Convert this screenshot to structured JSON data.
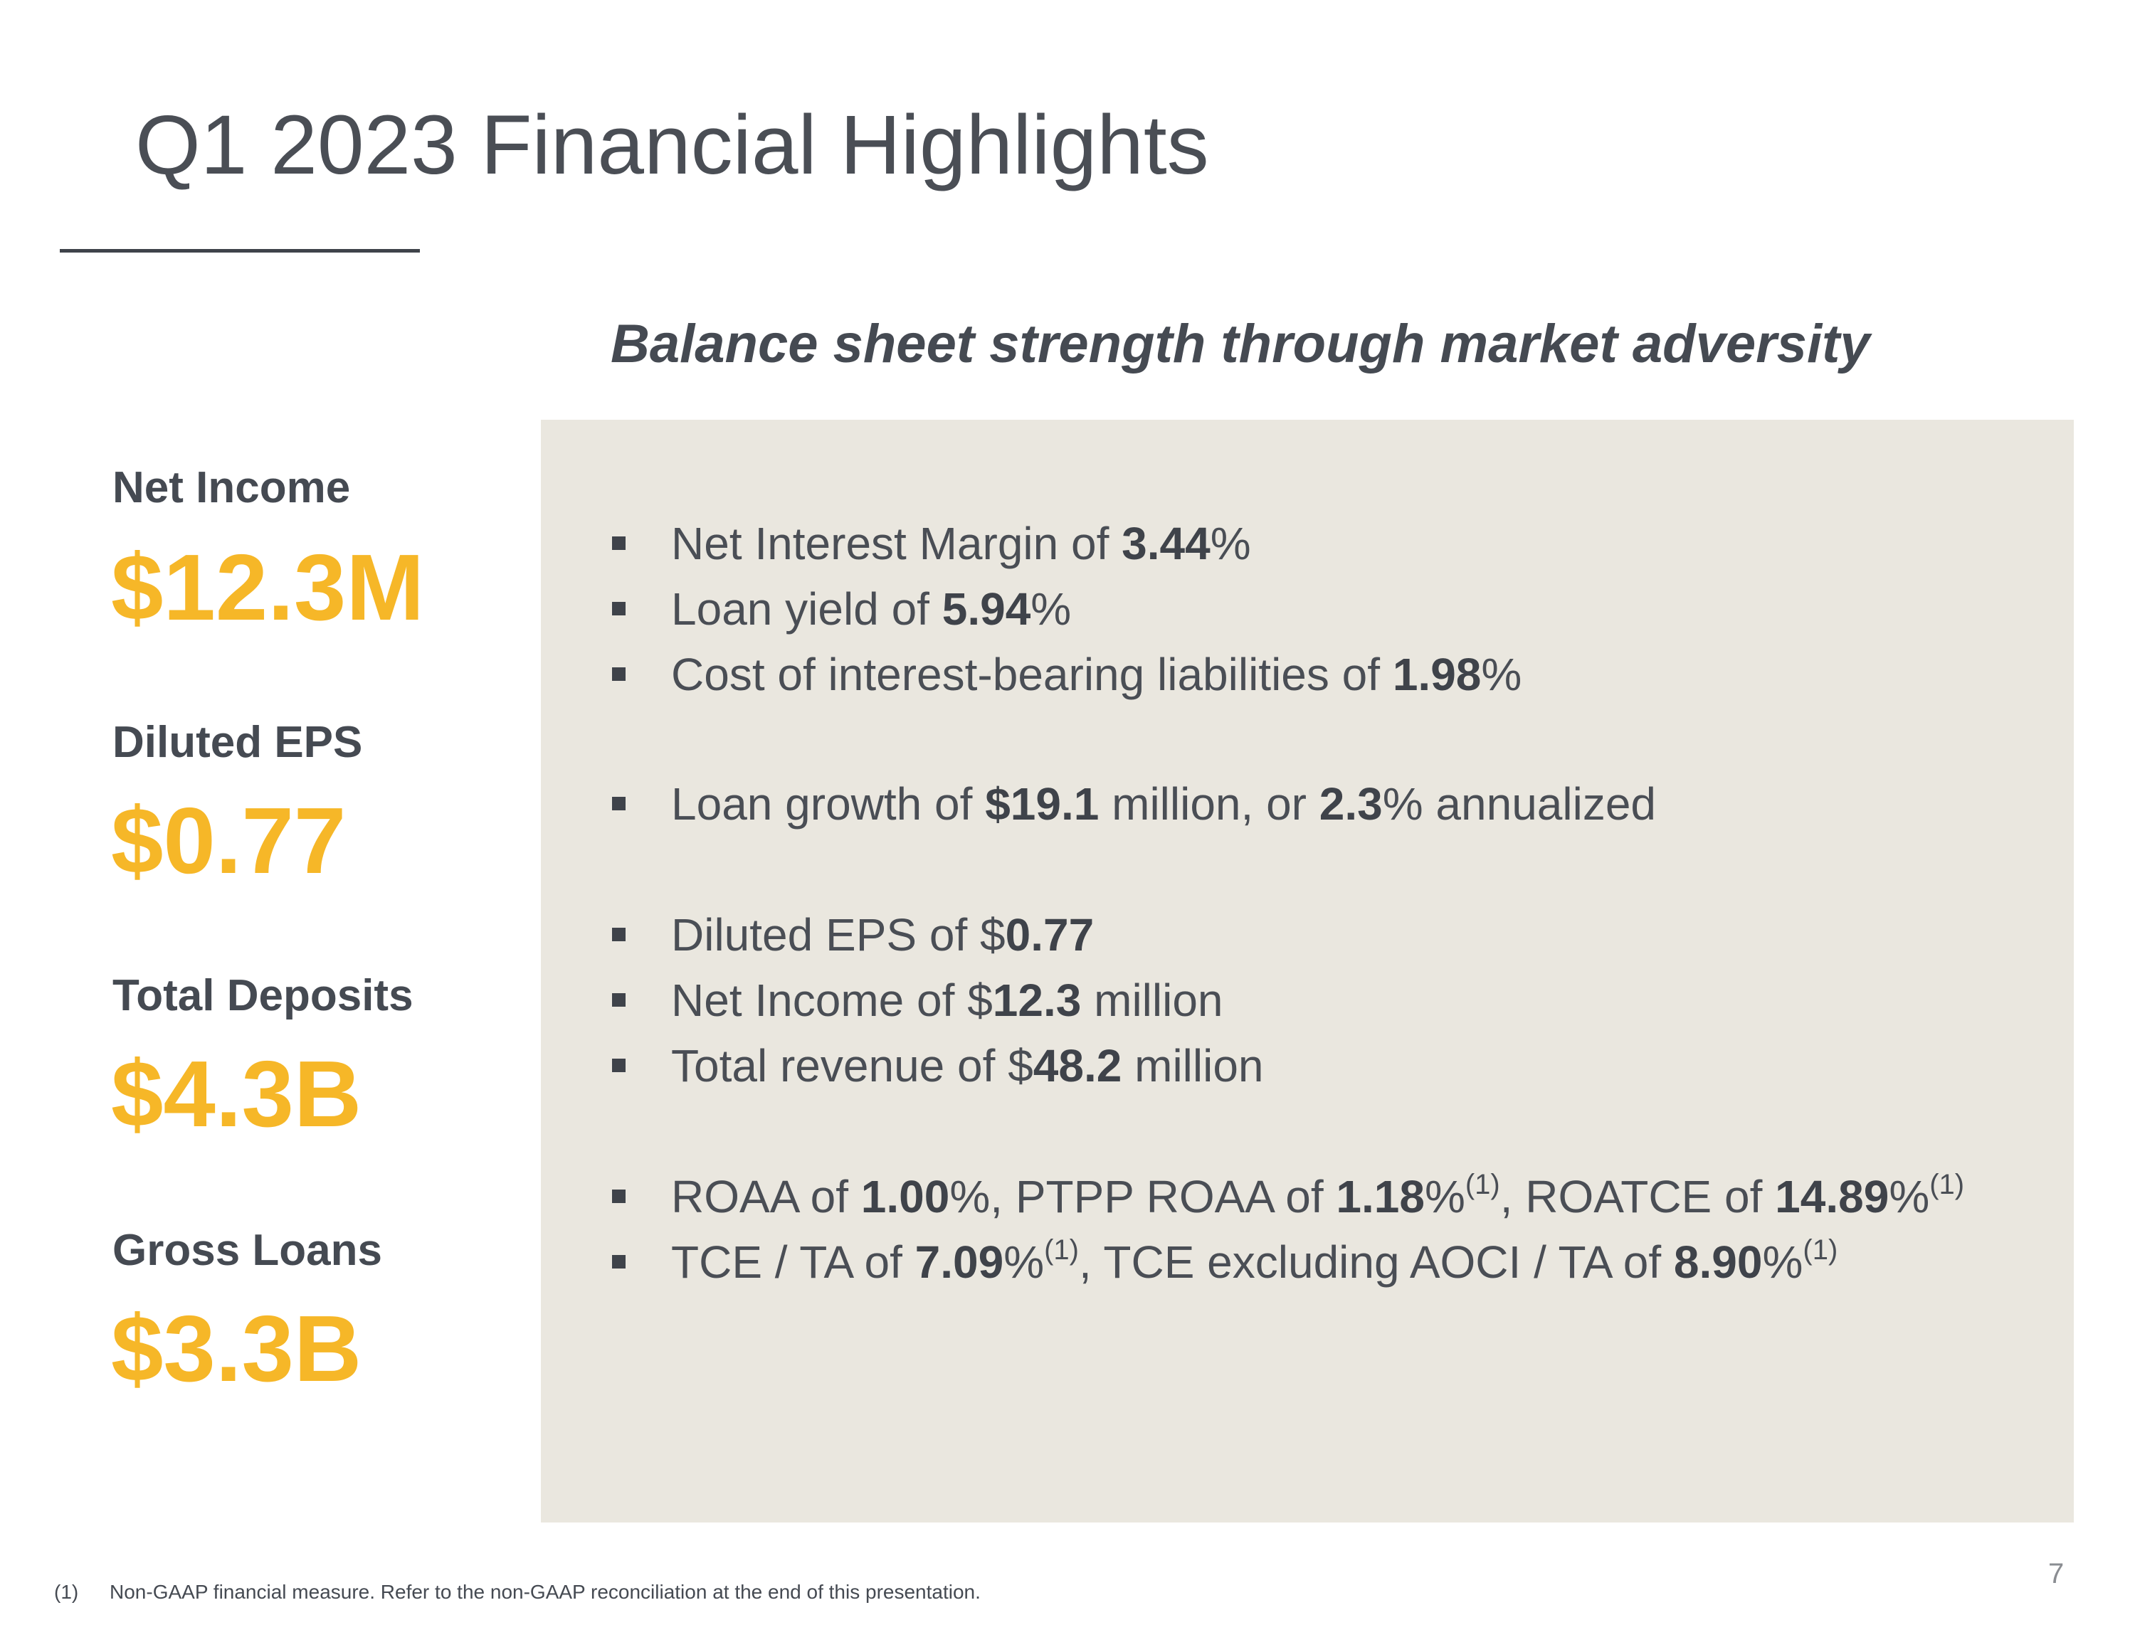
{
  "slide": {
    "title": "Q1 2023 Financial Highlights",
    "subtitle": "Balance sheet strength through market adversity",
    "page_number": "7"
  },
  "metrics": [
    {
      "label": "Net Income",
      "value": "$12.3M"
    },
    {
      "label": "Diluted EPS",
      "value": "$0.77"
    },
    {
      "label": "Total Deposits",
      "value": "$4.3B"
    },
    {
      "label": "Gross Loans",
      "value": "$3.3B"
    }
  ],
  "bullets": [
    {
      "parts": [
        {
          "t": "Net Interest Margin of "
        },
        {
          "t": "3.44",
          "b": true
        },
        {
          "t": "%"
        }
      ]
    },
    {
      "parts": [
        {
          "t": "Loan yield of "
        },
        {
          "t": "5.94",
          "b": true
        },
        {
          "t": "%"
        }
      ]
    },
    {
      "parts": [
        {
          "t": "Cost of interest-bearing liabilities of "
        },
        {
          "t": "1.98",
          "b": true
        },
        {
          "t": "%"
        }
      ]
    },
    {
      "parts": [
        {
          "t": "Loan growth of "
        },
        {
          "t": "$19.1",
          "b": true
        },
        {
          "t": " million, or "
        },
        {
          "t": "2.3",
          "b": true
        },
        {
          "t": "% annualized"
        }
      ]
    },
    {
      "parts": [
        {
          "t": "Diluted EPS of $"
        },
        {
          "t": "0.77",
          "b": true
        }
      ]
    },
    {
      "parts": [
        {
          "t": "Net Income of $"
        },
        {
          "t": "12.3",
          "b": true
        },
        {
          "t": " million"
        }
      ]
    },
    {
      "parts": [
        {
          "t": "Total revenue of $"
        },
        {
          "t": "48.2",
          "b": true
        },
        {
          "t": " million"
        }
      ]
    },
    {
      "parts": [
        {
          "t": "ROAA of "
        },
        {
          "t": "1.00",
          "b": true
        },
        {
          "t": "%, PTPP ROAA of "
        },
        {
          "t": "1.18",
          "b": true
        },
        {
          "t": "%"
        },
        {
          "t": "(1)",
          "sup": true
        },
        {
          "t": ", ROATCE of "
        },
        {
          "t": "14.89",
          "b": true
        },
        {
          "t": "%"
        },
        {
          "t": "(1)",
          "sup": true
        }
      ]
    },
    {
      "parts": [
        {
          "t": "TCE / TA of "
        },
        {
          "t": "7.09",
          "b": true
        },
        {
          "t": "%"
        },
        {
          "t": "(1)",
          "sup": true
        },
        {
          "t": ", TCE excluding AOCI / TA of "
        },
        {
          "t": "8.90",
          "b": true
        },
        {
          "t": "%"
        },
        {
          "t": "(1)",
          "sup": true
        }
      ]
    }
  ],
  "footnote": {
    "number": "(1)",
    "text": "Non-GAAP financial measure. Refer to the non-GAAP reconciliation at the end of this presentation."
  },
  "colors": {
    "accent": "#f6b728",
    "panel": "#eae7df",
    "text": "#4a4e55"
  }
}
